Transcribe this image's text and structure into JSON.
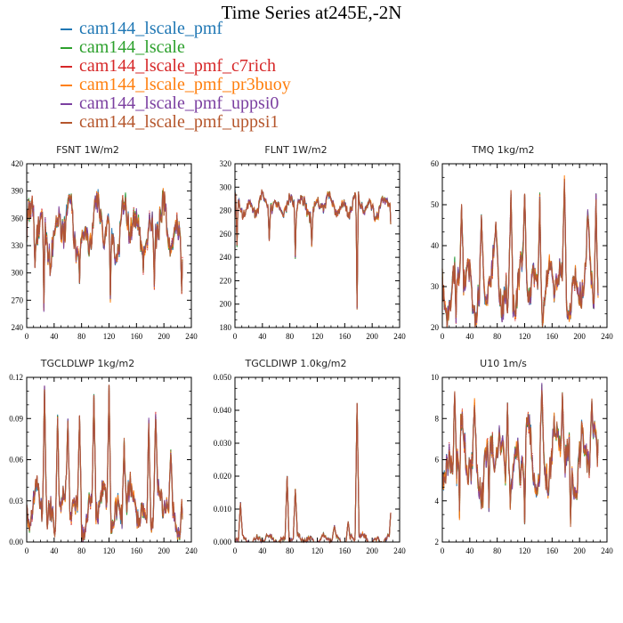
{
  "title": "Time Series at245E,-2N",
  "legend": [
    {
      "name": "cam144_lscale_pmf",
      "color": "#1f77b4"
    },
    {
      "name": "cam144_lscale",
      "color": "#2ca02c"
    },
    {
      "name": "cam144_lscale_pmf_c7rich",
      "color": "#d62728"
    },
    {
      "name": "cam144_lscale_pmf_pr3buoy",
      "color": "#ff7f0e"
    },
    {
      "name": "cam144_lscale_pmf_uppsi0",
      "color": "#7b3fa0"
    },
    {
      "name": "cam144_lscale_pmf_uppsi1",
      "color": "#b5562c"
    }
  ],
  "chart_data": [
    {
      "type": "line",
      "title": "FSNT   1W/m2",
      "xlim": [
        0,
        240
      ],
      "ylim": [
        240,
        420
      ],
      "xticks": [
        "0",
        "40",
        "80",
        "120",
        "160",
        "200",
        "240"
      ],
      "yticks": [
        "240",
        "270",
        "300",
        "330",
        "360",
        "390",
        "420"
      ],
      "n_points": 228,
      "baseline": 348,
      "amplitude": 30,
      "spikes": [],
      "dips": [
        [
          12,
          305
        ],
        [
          25,
          262
        ],
        [
          77,
          290
        ],
        [
          122,
          272
        ],
        [
          186,
          285
        ],
        [
          226,
          280
        ]
      ]
    },
    {
      "type": "line",
      "title": "FLNT   1W/m2",
      "xlim": [
        0,
        240
      ],
      "ylim": [
        180,
        320
      ],
      "xticks": [
        "0",
        "40",
        "80",
        "120",
        "160",
        "200",
        "240"
      ],
      "yticks": [
        "180",
        "200",
        "220",
        "240",
        "260",
        "280",
        "300",
        "320"
      ],
      "n_points": 228,
      "baseline": 284,
      "amplitude": 9,
      "spikes": [],
      "dips": [
        [
          3,
          250
        ],
        [
          50,
          255
        ],
        [
          88,
          240
        ],
        [
          112,
          250
        ],
        [
          178,
          196
        ],
        [
          228,
          252
        ]
      ]
    },
    {
      "type": "line",
      "title": "TMQ   1kg/m2",
      "xlim": [
        0,
        240
      ],
      "ylim": [
        20,
        60
      ],
      "xticks": [
        "0",
        "40",
        "80",
        "120",
        "160",
        "200",
        "240"
      ],
      "yticks": [
        "20",
        "30",
        "40",
        "50",
        "60"
      ],
      "n_points": 228,
      "baseline": 30,
      "amplitude": 7,
      "spikes": [
        [
          28,
          50
        ],
        [
          57,
          47
        ],
        [
          78,
          46
        ],
        [
          100,
          53
        ],
        [
          120,
          53
        ],
        [
          142,
          52
        ],
        [
          178,
          56
        ],
        [
          212,
          48
        ],
        [
          224,
          52
        ]
      ],
      "dips": [
        [
          20,
          22
        ],
        [
          95,
          23
        ],
        [
          187,
          23
        ]
      ]
    },
    {
      "type": "line",
      "title": "TGCLDLWP   1kg/m2",
      "xlim": [
        0,
        240
      ],
      "ylim": [
        0,
        0.13
      ],
      "xticks": [
        "0",
        "40",
        "80",
        "120",
        "160",
        "200",
        "240"
      ],
      "yticks": [
        "0.00",
        "0.03",
        "0.06",
        "0.09",
        "0.12"
      ],
      "n_points": 228,
      "baseline": 0.025,
      "amplitude": 0.018,
      "spikes": [
        [
          26,
          0.123
        ],
        [
          45,
          0.1
        ],
        [
          60,
          0.095
        ],
        [
          77,
          0.1
        ],
        [
          98,
          0.115
        ],
        [
          120,
          0.125
        ],
        [
          142,
          0.08
        ],
        [
          178,
          0.095
        ],
        [
          188,
          0.1
        ],
        [
          210,
          0.07
        ]
      ],
      "dips": []
    },
    {
      "type": "line",
      "title": "TGCLDIWP   1.0kg/m2",
      "xlim": [
        0,
        240
      ],
      "ylim": [
        0,
        0.05
      ],
      "xticks": [
        "0",
        "40",
        "80",
        "120",
        "160",
        "200",
        "240"
      ],
      "yticks": [
        "0.000",
        "0.010",
        "0.020",
        "0.030",
        "0.040",
        "0.050"
      ],
      "n_points": 228,
      "baseline": 0.0008,
      "amplitude": 0.0015,
      "spikes": [
        [
          8,
          0.012
        ],
        [
          76,
          0.02
        ],
        [
          88,
          0.016
        ],
        [
          145,
          0.005
        ],
        [
          165,
          0.006
        ],
        [
          178,
          0.042
        ],
        [
          228,
          0.012
        ]
      ],
      "dips": []
    },
    {
      "type": "line",
      "title": "U10   1m/s",
      "xlim": [
        0,
        240
      ],
      "ylim": [
        2,
        10
      ],
      "xticks": [
        "0",
        "40",
        "80",
        "120",
        "160",
        "200",
        "240"
      ],
      "yticks": [
        "2",
        "4",
        "6",
        "8",
        "10"
      ],
      "n_points": 228,
      "baseline": 6,
      "amplitude": 1.6,
      "spikes": [
        [
          18,
          9.2
        ],
        [
          47,
          8.8
        ],
        [
          95,
          8.6
        ],
        [
          145,
          9.5
        ],
        [
          175,
          9.0
        ],
        [
          218,
          8.7
        ]
      ],
      "dips": [
        [
          25,
          3.3
        ],
        [
          68,
          3.6
        ],
        [
          120,
          3.0
        ],
        [
          187,
          3.0
        ],
        [
          230,
          3.8
        ]
      ]
    }
  ]
}
